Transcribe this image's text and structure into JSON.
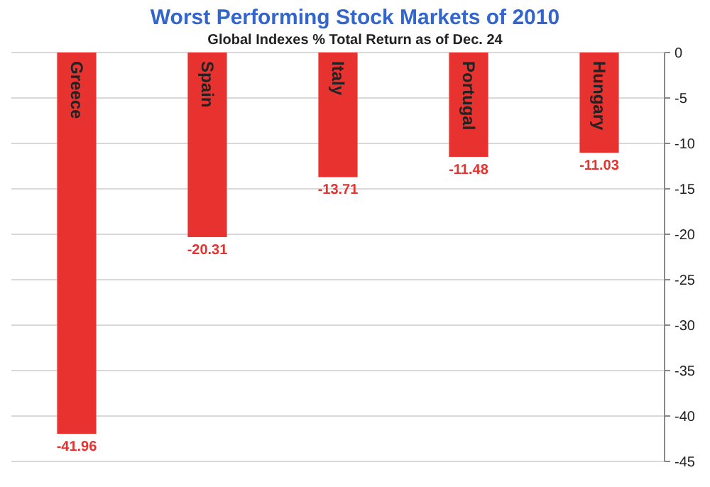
{
  "chart_data": {
    "type": "bar",
    "title": "Worst Performing Stock Markets of 2010",
    "subtitle": "Global Indexes % Total Return as of Dec. 24",
    "categories": [
      "Greece",
      "Spain",
      "Italy",
      "Portugal",
      "Hungary"
    ],
    "values": [
      -41.96,
      -20.31,
      -13.71,
      -11.48,
      -11.03
    ],
    "color": "#e8322f",
    "ylim": [
      -45,
      0
    ],
    "yticks": [
      -45,
      -40,
      -35,
      -30,
      -25,
      -20,
      -15,
      -10,
      -5,
      0
    ],
    "grid": "y",
    "data_labels": true
  }
}
